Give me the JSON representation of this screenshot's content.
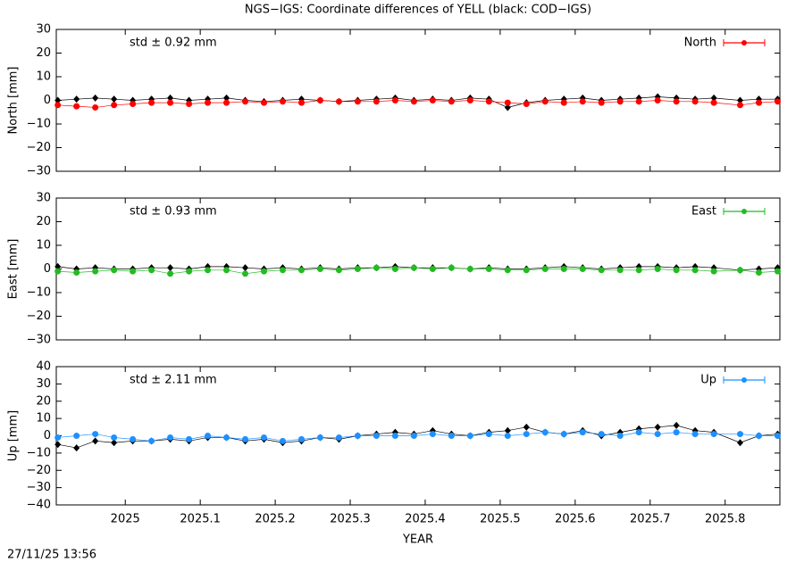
{
  "chart_data": [
    {
      "type": "line",
      "title": "NGS−IGS: Coordinate differences of YELL (black: COD−IGS)",
      "ylabel": "North [mm]",
      "annotation": "std ± 0.92 mm",
      "xlim": [
        2024.908,
        2025.873
      ],
      "xticks": [
        2025,
        2025.1,
        2025.2,
        2025.3,
        2025.4,
        2025.5,
        2025.6,
        2025.7,
        2025.8
      ],
      "ylim": [
        -30,
        30
      ],
      "yticks": [
        {
          "value": -30,
          "label": "−30"
        },
        {
          "value": -20,
          "label": "−20"
        },
        {
          "value": -10,
          "label": "−10"
        },
        0,
        10,
        20,
        30
      ],
      "legend": "upper right",
      "x": [
        2024.91,
        2024.935,
        2024.96,
        2024.985,
        2025.01,
        2025.035,
        2025.06,
        2025.085,
        2025.11,
        2025.135,
        2025.16,
        2025.185,
        2025.21,
        2025.235,
        2025.26,
        2025.285,
        2025.31,
        2025.335,
        2025.36,
        2025.385,
        2025.41,
        2025.435,
        2025.46,
        2025.485,
        2025.51,
        2025.535,
        2025.56,
        2025.585,
        2025.61,
        2025.635,
        2025.66,
        2025.685,
        2025.71,
        2025.735,
        2025.76,
        2025.785,
        2025.82,
        2025.845,
        2025.87
      ],
      "series": [
        {
          "color": "#000000",
          "values": [
            0,
            0.5,
            1,
            0.5,
            0,
            0.5,
            1,
            0,
            0.5,
            1,
            0,
            -0.5,
            0,
            0.5,
            0,
            -0.5,
            0,
            0.5,
            1,
            0,
            0.5,
            0,
            1,
            0.5,
            -3,
            -1,
            0,
            0.5,
            1,
            0,
            0.5,
            1,
            1.5,
            1,
            0.5,
            1,
            0,
            0.5,
            0.5
          ]
        },
        {
          "name": "North",
          "color": "#ff0000",
          "values": [
            -2,
            -2.5,
            -3,
            -2,
            -1.5,
            -1,
            -1,
            -1.5,
            -1,
            -1,
            -0.5,
            -1,
            -0.5,
            -1,
            0,
            -0.5,
            -0.5,
            -0.5,
            0,
            -0.5,
            0,
            -0.5,
            0,
            -0.5,
            -1,
            -1.5,
            -0.5,
            -1,
            -0.5,
            -1,
            -0.5,
            -0.5,
            0,
            -0.5,
            -0.5,
            -1,
            -2,
            -1,
            -0.5
          ]
        }
      ]
    },
    {
      "type": "line",
      "ylabel": "East [mm]",
      "annotation": "std ± 0.93 mm",
      "xlim": [
        2024.908,
        2025.873
      ],
      "xticks": [
        2025,
        2025.1,
        2025.2,
        2025.3,
        2025.4,
        2025.5,
        2025.6,
        2025.7,
        2025.8
      ],
      "ylim": [
        -30,
        30
      ],
      "yticks": [
        {
          "value": -30,
          "label": "−30"
        },
        {
          "value": -20,
          "label": "−20"
        },
        {
          "value": -10,
          "label": "−10"
        },
        0,
        10,
        20,
        30
      ],
      "legend": "upper right",
      "x": [
        2024.91,
        2024.935,
        2024.96,
        2024.985,
        2025.01,
        2025.035,
        2025.06,
        2025.085,
        2025.11,
        2025.135,
        2025.16,
        2025.185,
        2025.21,
        2025.235,
        2025.26,
        2025.285,
        2025.31,
        2025.335,
        2025.36,
        2025.385,
        2025.41,
        2025.435,
        2025.46,
        2025.485,
        2025.51,
        2025.535,
        2025.56,
        2025.585,
        2025.61,
        2025.635,
        2025.66,
        2025.685,
        2025.71,
        2025.735,
        2025.76,
        2025.785,
        2025.82,
        2025.845,
        2025.87
      ],
      "series": [
        {
          "color": "#000000",
          "values": [
            1,
            0,
            0.5,
            0,
            0,
            0.5,
            0.5,
            0,
            1,
            1,
            0.5,
            0,
            0.5,
            0,
            0.5,
            0,
            0.5,
            0.5,
            1,
            0.5,
            0.5,
            0.5,
            0,
            0.5,
            0,
            0,
            0.5,
            1,
            0.5,
            0,
            0.5,
            1,
            1,
            0.5,
            1,
            0.5,
            -0.5,
            0,
            0.5
          ]
        },
        {
          "name": "East",
          "color": "#22bb22",
          "values": [
            -1,
            -1.5,
            -1,
            -0.5,
            -1,
            -0.5,
            -2,
            -1,
            -0.5,
            -0.5,
            -2,
            -1,
            -0.5,
            -0.5,
            0,
            -0.5,
            0,
            0.5,
            0,
            0.5,
            0,
            0.5,
            0,
            0,
            -0.5,
            -0.5,
            0,
            0,
            0,
            -0.5,
            -0.5,
            -0.5,
            0,
            -0.5,
            -0.5,
            -1,
            -0.5,
            -1.5,
            -1
          ]
        }
      ]
    },
    {
      "type": "line",
      "ylabel": "Up [mm]",
      "xlabel": "YEAR",
      "annotation": "std ± 2.11 mm",
      "xlim": [
        2024.908,
        2025.873
      ],
      "xticks": [
        2025,
        2025.1,
        2025.2,
        2025.3,
        2025.4,
        2025.5,
        2025.6,
        2025.7,
        2025.8
      ],
      "ylim": [
        -40,
        40
      ],
      "yticks": [
        {
          "value": -40,
          "label": "−40"
        },
        {
          "value": -30,
          "label": "−30"
        },
        {
          "value": -20,
          "label": "−20"
        },
        {
          "value": -10,
          "label": "−10"
        },
        0,
        10,
        20,
        30,
        40
      ],
      "legend": "upper right",
      "x": [
        2024.91,
        2024.935,
        2024.96,
        2024.985,
        2025.01,
        2025.035,
        2025.06,
        2025.085,
        2025.11,
        2025.135,
        2025.16,
        2025.185,
        2025.21,
        2025.235,
        2025.26,
        2025.285,
        2025.31,
        2025.335,
        2025.36,
        2025.385,
        2025.41,
        2025.435,
        2025.46,
        2025.485,
        2025.51,
        2025.535,
        2025.56,
        2025.585,
        2025.61,
        2025.635,
        2025.66,
        2025.685,
        2025.71,
        2025.735,
        2025.76,
        2025.785,
        2025.82,
        2025.845,
        2025.87
      ],
      "series": [
        {
          "color": "#000000",
          "values": [
            -5,
            -7,
            -3,
            -4,
            -3,
            -3,
            -2,
            -3,
            -1,
            -1,
            -3,
            -2,
            -4,
            -3,
            -1,
            -2,
            0,
            1,
            2,
            1,
            3,
            1,
            0,
            2,
            3,
            5,
            2,
            1,
            3,
            0,
            2,
            4,
            5,
            6,
            3,
            2,
            -4,
            0,
            1
          ]
        },
        {
          "name": "Up",
          "color": "#1e90ff",
          "values": [
            -1,
            0,
            1,
            -1,
            -2,
            -3,
            -1,
            -2,
            0,
            -1,
            -2,
            -1,
            -3,
            -2,
            -1,
            -1,
            0,
            0,
            0,
            0,
            1,
            0,
            0,
            1,
            0,
            1,
            2,
            1,
            2,
            1,
            0,
            2,
            1,
            2,
            1,
            1,
            1,
            0,
            0
          ]
        }
      ]
    }
  ],
  "timestamp": "27/11/25 13:56"
}
